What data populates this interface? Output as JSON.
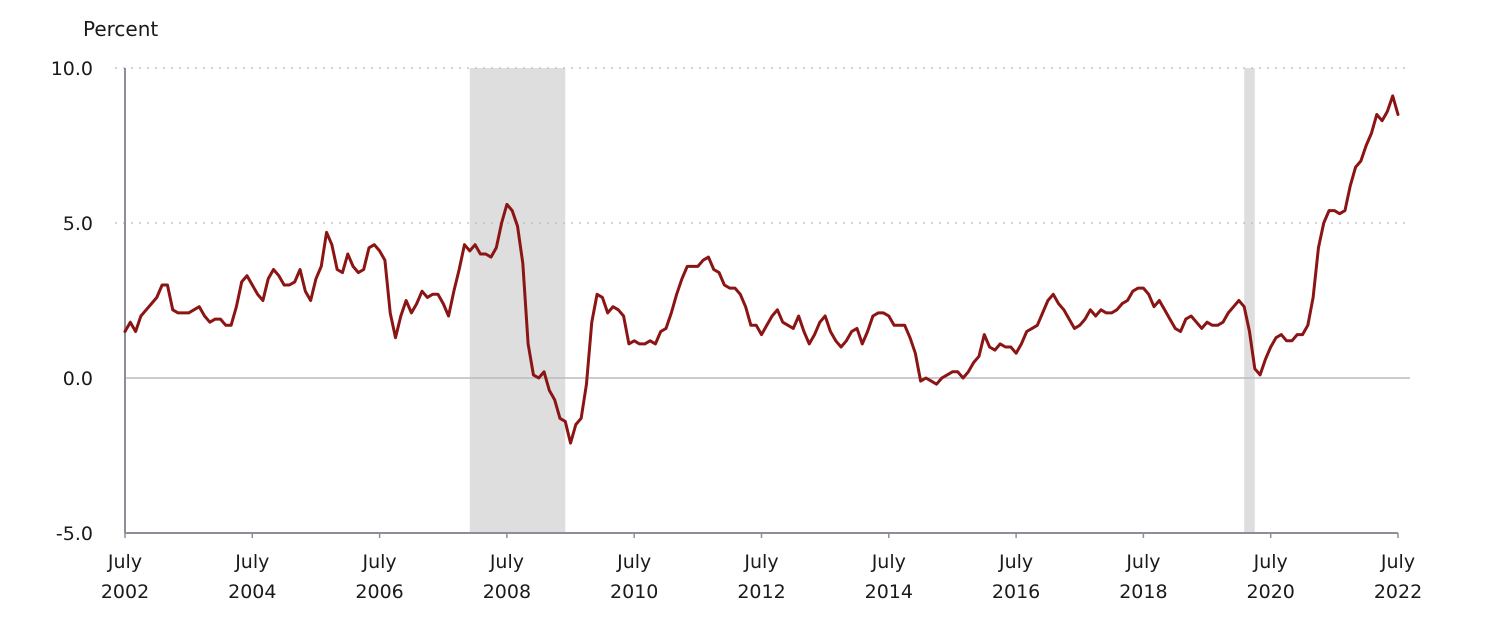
{
  "chart_data": {
    "type": "line",
    "unit_label": "Percent",
    "ylim": [
      -5.0,
      10.0
    ],
    "y_ticks": [
      {
        "value": 10.0,
        "label": "10.0"
      },
      {
        "value": 5.0,
        "label": "5.0"
      },
      {
        "value": 0.0,
        "label": "0.0"
      },
      {
        "value": -5.0,
        "label": "-5.0"
      }
    ],
    "x_range": [
      "2002-07",
      "2022-07"
    ],
    "x_ticks": [
      {
        "date": "2002-07",
        "line1": "July",
        "line2": "2002"
      },
      {
        "date": "2004-07",
        "line1": "July",
        "line2": "2004"
      },
      {
        "date": "2006-07",
        "line1": "July",
        "line2": "2006"
      },
      {
        "date": "2008-07",
        "line1": "July",
        "line2": "2008"
      },
      {
        "date": "2010-07",
        "line1": "July",
        "line2": "2010"
      },
      {
        "date": "2012-07",
        "line1": "July",
        "line2": "2012"
      },
      {
        "date": "2014-07",
        "line1": "July",
        "line2": "2014"
      },
      {
        "date": "2016-07",
        "line1": "July",
        "line2": "2016"
      },
      {
        "date": "2018-07",
        "line1": "July",
        "line2": "2018"
      },
      {
        "date": "2020-07",
        "line1": "July",
        "line2": "2020"
      },
      {
        "date": "2022-07",
        "line1": "July",
        "line2": "2022"
      }
    ],
    "grid": "dotted horizontal at 5.0 and 10.0; solid line at 0.0",
    "recession_shading": [
      {
        "start": "2007-12",
        "end": "2009-06"
      },
      {
        "start": "2020-02",
        "end": "2020-04"
      }
    ],
    "series": [
      {
        "color": "#8b1414",
        "points": [
          [
            "2002-07",
            1.5
          ],
          [
            "2002-08",
            1.8
          ],
          [
            "2002-09",
            1.5
          ],
          [
            "2002-10",
            2.0
          ],
          [
            "2002-11",
            2.2
          ],
          [
            "2002-12",
            2.4
          ],
          [
            "2003-01",
            2.6
          ],
          [
            "2003-02",
            3.0
          ],
          [
            "2003-03",
            3.0
          ],
          [
            "2003-04",
            2.2
          ],
          [
            "2003-05",
            2.1
          ],
          [
            "2003-06",
            2.1
          ],
          [
            "2003-07",
            2.1
          ],
          [
            "2003-08",
            2.2
          ],
          [
            "2003-09",
            2.3
          ],
          [
            "2003-10",
            2.0
          ],
          [
            "2003-11",
            1.8
          ],
          [
            "2003-12",
            1.9
          ],
          [
            "2004-01",
            1.9
          ],
          [
            "2004-02",
            1.7
          ],
          [
            "2004-03",
            1.7
          ],
          [
            "2004-04",
            2.3
          ],
          [
            "2004-05",
            3.1
          ],
          [
            "2004-06",
            3.3
          ],
          [
            "2004-07",
            3.0
          ],
          [
            "2004-08",
            2.7
          ],
          [
            "2004-09",
            2.5
          ],
          [
            "2004-10",
            3.2
          ],
          [
            "2004-11",
            3.5
          ],
          [
            "2004-12",
            3.3
          ],
          [
            "2005-01",
            3.0
          ],
          [
            "2005-02",
            3.0
          ],
          [
            "2005-03",
            3.1
          ],
          [
            "2005-04",
            3.5
          ],
          [
            "2005-05",
            2.8
          ],
          [
            "2005-06",
            2.5
          ],
          [
            "2005-07",
            3.2
          ],
          [
            "2005-08",
            3.6
          ],
          [
            "2005-09",
            4.7
          ],
          [
            "2005-10",
            4.3
          ],
          [
            "2005-11",
            3.5
          ],
          [
            "2005-12",
            3.4
          ],
          [
            "2006-01",
            4.0
          ],
          [
            "2006-02",
            3.6
          ],
          [
            "2006-03",
            3.4
          ],
          [
            "2006-04",
            3.5
          ],
          [
            "2006-05",
            4.2
          ],
          [
            "2006-06",
            4.3
          ],
          [
            "2006-07",
            4.1
          ],
          [
            "2006-08",
            3.8
          ],
          [
            "2006-09",
            2.1
          ],
          [
            "2006-10",
            1.3
          ],
          [
            "2006-11",
            2.0
          ],
          [
            "2006-12",
            2.5
          ],
          [
            "2007-01",
            2.1
          ],
          [
            "2007-02",
            2.4
          ],
          [
            "2007-03",
            2.8
          ],
          [
            "2007-04",
            2.6
          ],
          [
            "2007-05",
            2.7
          ],
          [
            "2007-06",
            2.7
          ],
          [
            "2007-07",
            2.4
          ],
          [
            "2007-08",
            2.0
          ],
          [
            "2007-09",
            2.8
          ],
          [
            "2007-10",
            3.5
          ],
          [
            "2007-11",
            4.3
          ],
          [
            "2007-12",
            4.1
          ],
          [
            "2008-01",
            4.3
          ],
          [
            "2008-02",
            4.0
          ],
          [
            "2008-03",
            4.0
          ],
          [
            "2008-04",
            3.9
          ],
          [
            "2008-05",
            4.2
          ],
          [
            "2008-06",
            5.0
          ],
          [
            "2008-07",
            5.6
          ],
          [
            "2008-08",
            5.4
          ],
          [
            "2008-09",
            4.9
          ],
          [
            "2008-10",
            3.7
          ],
          [
            "2008-11",
            1.1
          ],
          [
            "2008-12",
            0.1
          ],
          [
            "2009-01",
            0.0
          ],
          [
            "2009-02",
            0.2
          ],
          [
            "2009-03",
            -0.4
          ],
          [
            "2009-04",
            -0.7
          ],
          [
            "2009-05",
            -1.3
          ],
          [
            "2009-06",
            -1.4
          ],
          [
            "2009-07",
            -2.1
          ],
          [
            "2009-08",
            -1.5
          ],
          [
            "2009-09",
            -1.3
          ],
          [
            "2009-10",
            -0.2
          ],
          [
            "2009-11",
            1.8
          ],
          [
            "2009-12",
            2.7
          ],
          [
            "2010-01",
            2.6
          ],
          [
            "2010-02",
            2.1
          ],
          [
            "2010-03",
            2.3
          ],
          [
            "2010-04",
            2.2
          ],
          [
            "2010-05",
            2.0
          ],
          [
            "2010-06",
            1.1
          ],
          [
            "2010-07",
            1.2
          ],
          [
            "2010-08",
            1.1
          ],
          [
            "2010-09",
            1.1
          ],
          [
            "2010-10",
            1.2
          ],
          [
            "2010-11",
            1.1
          ],
          [
            "2010-12",
            1.5
          ],
          [
            "2011-01",
            1.6
          ],
          [
            "2011-02",
            2.1
          ],
          [
            "2011-03",
            2.7
          ],
          [
            "2011-04",
            3.2
          ],
          [
            "2011-05",
            3.6
          ],
          [
            "2011-06",
            3.6
          ],
          [
            "2011-07",
            3.6
          ],
          [
            "2011-08",
            3.8
          ],
          [
            "2011-09",
            3.9
          ],
          [
            "2011-10",
            3.5
          ],
          [
            "2011-11",
            3.4
          ],
          [
            "2011-12",
            3.0
          ],
          [
            "2012-01",
            2.9
          ],
          [
            "2012-02",
            2.9
          ],
          [
            "2012-03",
            2.7
          ],
          [
            "2012-04",
            2.3
          ],
          [
            "2012-05",
            1.7
          ],
          [
            "2012-06",
            1.7
          ],
          [
            "2012-07",
            1.4
          ],
          [
            "2012-08",
            1.7
          ],
          [
            "2012-09",
            2.0
          ],
          [
            "2012-10",
            2.2
          ],
          [
            "2012-11",
            1.8
          ],
          [
            "2012-12",
            1.7
          ],
          [
            "2013-01",
            1.6
          ],
          [
            "2013-02",
            2.0
          ],
          [
            "2013-03",
            1.5
          ],
          [
            "2013-04",
            1.1
          ],
          [
            "2013-05",
            1.4
          ],
          [
            "2013-06",
            1.8
          ],
          [
            "2013-07",
            2.0
          ],
          [
            "2013-08",
            1.5
          ],
          [
            "2013-09",
            1.2
          ],
          [
            "2013-10",
            1.0
          ],
          [
            "2013-11",
            1.2
          ],
          [
            "2013-12",
            1.5
          ],
          [
            "2014-01",
            1.6
          ],
          [
            "2014-02",
            1.1
          ],
          [
            "2014-03",
            1.5
          ],
          [
            "2014-04",
            2.0
          ],
          [
            "2014-05",
            2.1
          ],
          [
            "2014-06",
            2.1
          ],
          [
            "2014-07",
            2.0
          ],
          [
            "2014-08",
            1.7
          ],
          [
            "2014-09",
            1.7
          ],
          [
            "2014-10",
            1.7
          ],
          [
            "2014-11",
            1.3
          ],
          [
            "2014-12",
            0.8
          ],
          [
            "2015-01",
            -0.1
          ],
          [
            "2015-02",
            0.0
          ],
          [
            "2015-03",
            -0.1
          ],
          [
            "2015-04",
            -0.2
          ],
          [
            "2015-05",
            0.0
          ],
          [
            "2015-06",
            0.1
          ],
          [
            "2015-07",
            0.2
          ],
          [
            "2015-08",
            0.2
          ],
          [
            "2015-09",
            0.0
          ],
          [
            "2015-10",
            0.2
          ],
          [
            "2015-11",
            0.5
          ],
          [
            "2015-12",
            0.7
          ],
          [
            "2016-01",
            1.4
          ],
          [
            "2016-02",
            1.0
          ],
          [
            "2016-03",
            0.9
          ],
          [
            "2016-04",
            1.1
          ],
          [
            "2016-05",
            1.0
          ],
          [
            "2016-06",
            1.0
          ],
          [
            "2016-07",
            0.8
          ],
          [
            "2016-08",
            1.1
          ],
          [
            "2016-09",
            1.5
          ],
          [
            "2016-10",
            1.6
          ],
          [
            "2016-11",
            1.7
          ],
          [
            "2016-12",
            2.1
          ],
          [
            "2017-01",
            2.5
          ],
          [
            "2017-02",
            2.7
          ],
          [
            "2017-03",
            2.4
          ],
          [
            "2017-04",
            2.2
          ],
          [
            "2017-05",
            1.9
          ],
          [
            "2017-06",
            1.6
          ],
          [
            "2017-07",
            1.7
          ],
          [
            "2017-08",
            1.9
          ],
          [
            "2017-09",
            2.2
          ],
          [
            "2017-10",
            2.0
          ],
          [
            "2017-11",
            2.2
          ],
          [
            "2017-12",
            2.1
          ],
          [
            "2018-01",
            2.1
          ],
          [
            "2018-02",
            2.2
          ],
          [
            "2018-03",
            2.4
          ],
          [
            "2018-04",
            2.5
          ],
          [
            "2018-05",
            2.8
          ],
          [
            "2018-06",
            2.9
          ],
          [
            "2018-07",
            2.9
          ],
          [
            "2018-08",
            2.7
          ],
          [
            "2018-09",
            2.3
          ],
          [
            "2018-10",
            2.5
          ],
          [
            "2018-11",
            2.2
          ],
          [
            "2018-12",
            1.9
          ],
          [
            "2019-01",
            1.6
          ],
          [
            "2019-02",
            1.5
          ],
          [
            "2019-03",
            1.9
          ],
          [
            "2019-04",
            2.0
          ],
          [
            "2019-05",
            1.8
          ],
          [
            "2019-06",
            1.6
          ],
          [
            "2019-07",
            1.8
          ],
          [
            "2019-08",
            1.7
          ],
          [
            "2019-09",
            1.7
          ],
          [
            "2019-10",
            1.8
          ],
          [
            "2019-11",
            2.1
          ],
          [
            "2019-12",
            2.3
          ],
          [
            "2020-01",
            2.5
          ],
          [
            "2020-02",
            2.3
          ],
          [
            "2020-03",
            1.5
          ],
          [
            "2020-04",
            0.3
          ],
          [
            "2020-05",
            0.1
          ],
          [
            "2020-06",
            0.6
          ],
          [
            "2020-07",
            1.0
          ],
          [
            "2020-08",
            1.3
          ],
          [
            "2020-09",
            1.4
          ],
          [
            "2020-10",
            1.2
          ],
          [
            "2020-11",
            1.2
          ],
          [
            "2020-12",
            1.4
          ],
          [
            "2021-01",
            1.4
          ],
          [
            "2021-02",
            1.7
          ],
          [
            "2021-03",
            2.6
          ],
          [
            "2021-04",
            4.2
          ],
          [
            "2021-05",
            5.0
          ],
          [
            "2021-06",
            5.4
          ],
          [
            "2021-07",
            5.4
          ],
          [
            "2021-08",
            5.3
          ],
          [
            "2021-09",
            5.4
          ],
          [
            "2021-10",
            6.2
          ],
          [
            "2021-11",
            6.8
          ],
          [
            "2021-12",
            7.0
          ],
          [
            "2022-01",
            7.5
          ],
          [
            "2022-02",
            7.9
          ],
          [
            "2022-03",
            8.5
          ],
          [
            "2022-04",
            8.3
          ],
          [
            "2022-05",
            8.6
          ],
          [
            "2022-06",
            9.1
          ],
          [
            "2022-07",
            8.5
          ]
        ]
      }
    ]
  },
  "colors": {
    "line": "#8b1414",
    "recession": "#dedede",
    "axis": "#8a8f99",
    "grid": "#b8bcc4",
    "text": "#1a1a1a"
  }
}
